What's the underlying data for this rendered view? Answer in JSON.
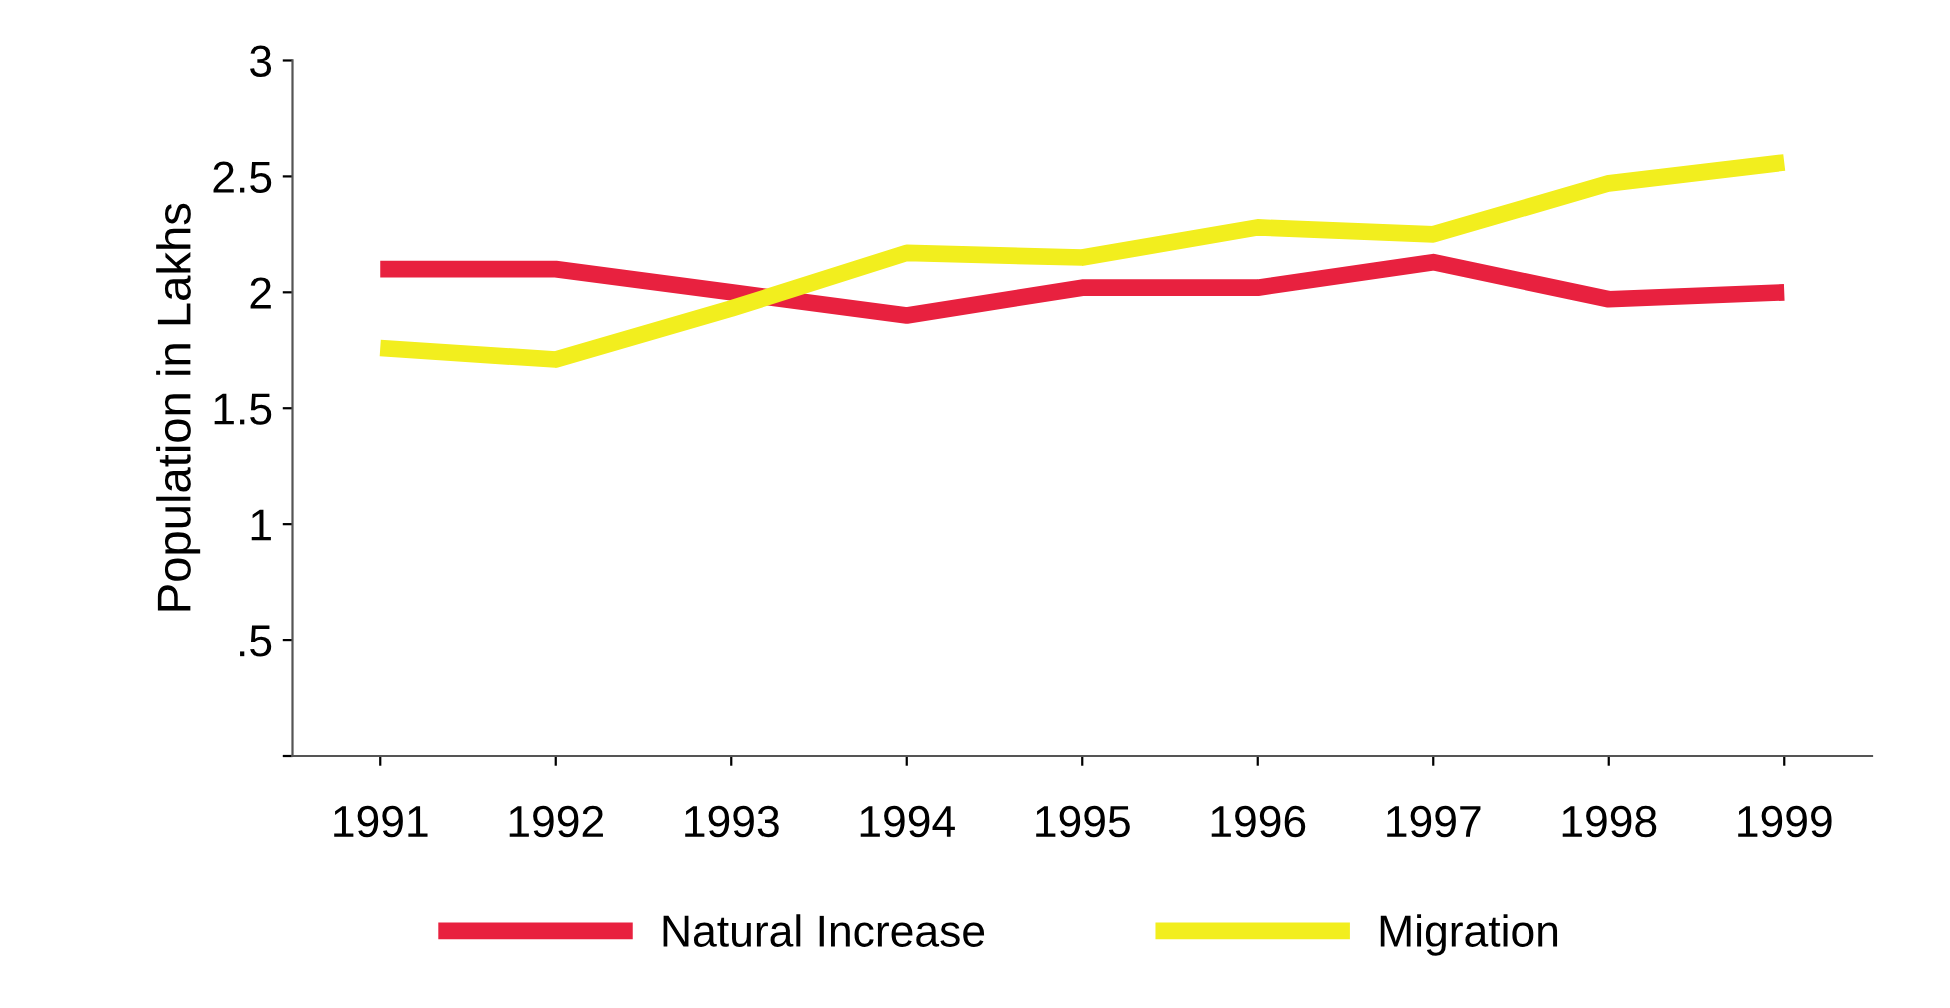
{
  "chart_data": {
    "type": "line",
    "ylabel": "Population in Lakhs",
    "categories": [
      "1991",
      "1992",
      "1993",
      "1994",
      "1995",
      "1996",
      "1997",
      "1998",
      "1999"
    ],
    "series": [
      {
        "name": "Natural Increase",
        "color": "#e8213f",
        "values": [
          2.1,
          2.1,
          2.0,
          1.9,
          2.02,
          2.02,
          2.13,
          1.97,
          2.0
        ]
      },
      {
        "name": "Migration",
        "color": "#f2ee1e",
        "values": [
          1.76,
          1.71,
          1.93,
          2.17,
          2.15,
          2.28,
          2.25,
          2.47,
          2.56
        ]
      }
    ],
    "ylim": [
      0,
      3
    ],
    "yticks": [
      {
        "value": 0,
        "label": null
      },
      {
        "value": 0.5,
        "label": ".5"
      },
      1,
      1.5,
      2,
      2.5,
      3
    ],
    "grid": false,
    "legend": "bottom",
    "marker": "none",
    "line_style": "solid"
  }
}
